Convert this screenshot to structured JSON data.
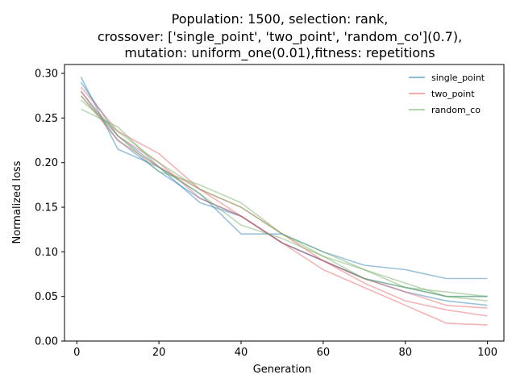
{
  "chart_data": {
    "type": "line",
    "title_lines": [
      "Population: 1500, selection: rank,",
      "crossover: ['single_point', 'two_point', 'random_co'](0.7),",
      "mutation: uniform_one(0.01),fitness: repetitions"
    ],
    "xlabel": "Generation",
    "ylabel": "Normalized loss",
    "xlim": [
      -3,
      104
    ],
    "ylim": [
      0,
      0.31
    ],
    "xticks": [
      0,
      20,
      40,
      60,
      80,
      100
    ],
    "xtick_labels": [
      "0",
      "20",
      "40",
      "60",
      "80",
      "100"
    ],
    "yticks": [
      0,
      0.05,
      0.1,
      0.15,
      0.2,
      0.25,
      0.3
    ],
    "ytick_labels": [
      "0.00",
      "0.05",
      "0.10",
      "0.15",
      "0.20",
      "0.25",
      "0.30"
    ],
    "legend": {
      "position": "top-right",
      "entries": [
        "single_point",
        "two_point",
        "random_co"
      ]
    },
    "grid": false,
    "series": [
      {
        "name": "single_point",
        "color": "#1f77b4",
        "x": [
          1,
          10,
          20,
          30,
          40,
          50,
          60,
          70,
          80,
          90,
          100
        ],
        "y": [
          0.296,
          0.215,
          0.195,
          0.165,
          0.12,
          0.12,
          0.1,
          0.085,
          0.08,
          0.07,
          0.07
        ]
      },
      {
        "name": "",
        "color": "#1f77b4",
        "x": [
          1,
          10,
          20,
          30,
          40,
          50,
          60,
          70,
          80,
          90,
          100
        ],
        "y": [
          0.29,
          0.23,
          0.195,
          0.155,
          0.14,
          0.11,
          0.09,
          0.07,
          0.06,
          0.05,
          0.05
        ]
      },
      {
        "name": "",
        "color": "#1f77b4",
        "x": [
          1,
          10,
          20,
          30,
          40,
          50,
          60,
          70,
          80,
          90,
          100
        ],
        "y": [
          0.28,
          0.225,
          0.19,
          0.16,
          0.14,
          0.11,
          0.09,
          0.07,
          0.055,
          0.045,
          0.04
        ]
      },
      {
        "name": "two_point",
        "color": "#e8595c",
        "x": [
          1,
          10,
          20,
          30,
          40,
          50,
          60,
          70,
          80,
          90,
          100
        ],
        "y": [
          0.275,
          0.225,
          0.195,
          0.17,
          0.14,
          0.11,
          0.08,
          0.06,
          0.04,
          0.02,
          0.018
        ]
      },
      {
        "name": "",
        "color": "#e8595c",
        "x": [
          1,
          10,
          20,
          30,
          40,
          50,
          60,
          70,
          80,
          90,
          100
        ],
        "y": [
          0.28,
          0.23,
          0.2,
          0.16,
          0.14,
          0.11,
          0.09,
          0.07,
          0.055,
          0.04,
          0.037
        ]
      },
      {
        "name": "",
        "color": "#e8595c",
        "x": [
          1,
          10,
          20,
          30,
          40,
          50,
          60,
          70,
          80,
          90,
          100
        ],
        "y": [
          0.285,
          0.235,
          0.21,
          0.17,
          0.15,
          0.12,
          0.09,
          0.065,
          0.045,
          0.035,
          0.028
        ]
      },
      {
        "name": "random_co",
        "color": "#6aaa5a",
        "x": [
          1,
          10,
          20,
          30,
          40,
          50,
          60,
          70,
          80,
          90,
          100
        ],
        "y": [
          0.27,
          0.235,
          0.2,
          0.17,
          0.15,
          0.12,
          0.095,
          0.07,
          0.06,
          0.055,
          0.05
        ]
      },
      {
        "name": "",
        "color": "#6aaa5a",
        "x": [
          1,
          10,
          20,
          30,
          40,
          50,
          60,
          70,
          80,
          90,
          100
        ],
        "y": [
          0.26,
          0.24,
          0.195,
          0.165,
          0.13,
          0.115,
          0.095,
          0.08,
          0.065,
          0.05,
          0.045
        ]
      },
      {
        "name": "",
        "color": "#6aaa5a",
        "x": [
          1,
          10,
          20,
          30,
          40,
          50,
          60,
          70,
          80,
          90,
          100
        ],
        "y": [
          0.275,
          0.23,
          0.19,
          0.175,
          0.155,
          0.12,
          0.1,
          0.08,
          0.06,
          0.05,
          0.05
        ]
      }
    ]
  }
}
